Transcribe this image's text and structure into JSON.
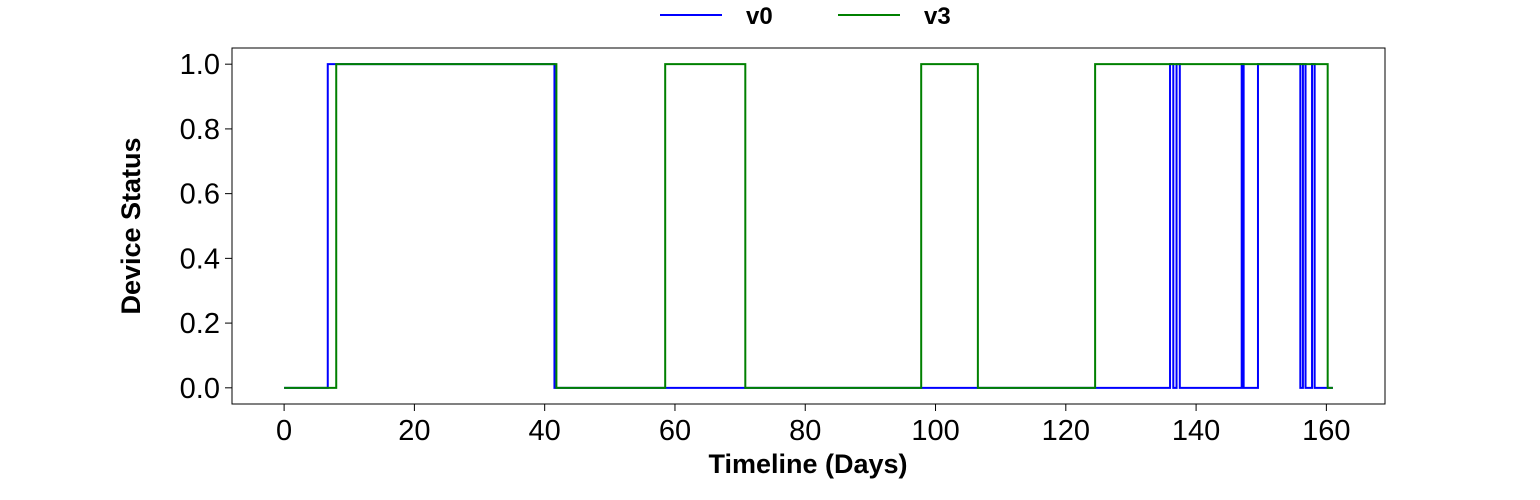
{
  "chart_data": {
    "type": "line",
    "step": true,
    "xlabel": "Timeline (Days)",
    "ylabel": "Device Status",
    "xlim": [
      -8,
      169
    ],
    "ylim": [
      -0.05,
      1.05
    ],
    "xticks": [
      0,
      20,
      40,
      60,
      80,
      100,
      120,
      140,
      160
    ],
    "xtick_labels": [
      "0",
      "20",
      "40",
      "60",
      "80",
      "100",
      "120",
      "140",
      "160"
    ],
    "yticks": [
      0.0,
      0.2,
      0.4,
      0.6,
      0.8,
      1.0
    ],
    "ytick_labels": [
      "0.0",
      "0.2",
      "0.4",
      "0.6",
      "0.8",
      "1.0"
    ],
    "grid": false,
    "legend_position": "top-center",
    "series": [
      {
        "name": "v0",
        "color": "#0000ff",
        "points": [
          [
            0,
            0
          ],
          [
            6.7,
            0
          ],
          [
            6.7,
            1
          ],
          [
            41.5,
            1
          ],
          [
            41.5,
            0
          ],
          [
            136.0,
            0
          ],
          [
            136.0,
            1
          ],
          [
            136.5,
            1
          ],
          [
            136.5,
            0
          ],
          [
            137.0,
            0
          ],
          [
            137.0,
            1
          ],
          [
            137.5,
            1
          ],
          [
            137.5,
            0
          ],
          [
            147.0,
            0
          ],
          [
            147.0,
            1
          ],
          [
            147.3,
            1
          ],
          [
            147.3,
            0
          ],
          [
            149.5,
            0
          ],
          [
            149.5,
            1
          ],
          [
            156.0,
            1
          ],
          [
            156.0,
            0
          ],
          [
            156.4,
            0
          ],
          [
            156.4,
            1
          ],
          [
            156.8,
            1
          ],
          [
            156.8,
            0
          ],
          [
            157.8,
            0
          ],
          [
            157.8,
            1
          ],
          [
            158.2,
            1
          ],
          [
            158.2,
            0
          ],
          [
            161,
            0
          ]
        ]
      },
      {
        "name": "v3",
        "color": "#008000",
        "points": [
          [
            0,
            0
          ],
          [
            8.0,
            0
          ],
          [
            8.0,
            1
          ],
          [
            41.8,
            1
          ],
          [
            41.8,
            0
          ],
          [
            58.5,
            0
          ],
          [
            58.5,
            1
          ],
          [
            70.8,
            1
          ],
          [
            70.8,
            0
          ],
          [
            97.8,
            0
          ],
          [
            97.8,
            1
          ],
          [
            106.5,
            1
          ],
          [
            106.5,
            0
          ],
          [
            124.5,
            0
          ],
          [
            124.5,
            1
          ],
          [
            160.2,
            1
          ],
          [
            160.2,
            0
          ],
          [
            161,
            0
          ]
        ]
      }
    ]
  }
}
